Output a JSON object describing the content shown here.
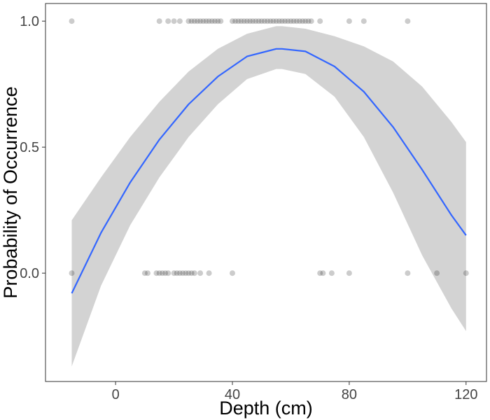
{
  "chart_data": {
    "type": "scatter",
    "title": "",
    "xlabel": "Depth (cm)",
    "ylabel": "Probability of Occurrence",
    "xlim": [
      -24,
      127
    ],
    "ylim": [
      -0.43,
      1.07
    ],
    "xticks": [
      0,
      40,
      80,
      120
    ],
    "xtick_labels": [
      "0",
      "40",
      "80",
      "120"
    ],
    "yticks": [
      0.0,
      0.5,
      1.0
    ],
    "ytick_labels": [
      "0.0",
      "0.5",
      "1.0"
    ],
    "grid": false,
    "legend": "none",
    "colors": {
      "points": "#000000",
      "fit_line": "#3366ff",
      "ribbon": "#d3d3d3",
      "frame": "#333333"
    },
    "series": [
      {
        "kind": "points",
        "points": [
          [
            -15,
            1
          ],
          [
            15,
            1
          ],
          [
            18,
            1
          ],
          [
            20,
            1
          ],
          [
            22,
            1
          ],
          [
            25,
            1
          ],
          [
            26,
            1
          ],
          [
            27,
            1
          ],
          [
            28,
            1
          ],
          [
            29,
            1
          ],
          [
            30,
            1
          ],
          [
            31,
            1
          ],
          [
            32,
            1
          ],
          [
            33,
            1
          ],
          [
            34,
            1
          ],
          [
            35,
            1
          ],
          [
            36,
            1
          ],
          [
            40,
            1
          ],
          [
            41,
            1
          ],
          [
            42,
            1
          ],
          [
            43,
            1
          ],
          [
            44,
            1
          ],
          [
            45,
            1
          ],
          [
            46,
            1
          ],
          [
            47,
            1
          ],
          [
            48,
            1
          ],
          [
            49,
            1
          ],
          [
            50,
            1
          ],
          [
            51,
            1
          ],
          [
            52,
            1
          ],
          [
            53,
            1
          ],
          [
            54,
            1
          ],
          [
            55,
            1
          ],
          [
            56,
            1
          ],
          [
            57,
            1
          ],
          [
            58,
            1
          ],
          [
            59,
            1
          ],
          [
            60,
            1
          ],
          [
            61,
            1
          ],
          [
            62,
            1
          ],
          [
            63,
            1
          ],
          [
            64,
            1
          ],
          [
            65,
            1
          ],
          [
            66,
            1
          ],
          [
            67,
            1
          ],
          [
            70,
            1
          ],
          [
            80,
            1
          ],
          [
            85,
            1
          ],
          [
            100,
            1
          ],
          [
            -15,
            0
          ],
          [
            10,
            0
          ],
          [
            11,
            0
          ],
          [
            14,
            0
          ],
          [
            15,
            0
          ],
          [
            16,
            0
          ],
          [
            17,
            0
          ],
          [
            18,
            0
          ],
          [
            20,
            0
          ],
          [
            21,
            0
          ],
          [
            22,
            0
          ],
          [
            23,
            0
          ],
          [
            24,
            0
          ],
          [
            25,
            0
          ],
          [
            26,
            0
          ],
          [
            27,
            0
          ],
          [
            29,
            0
          ],
          [
            32,
            0
          ],
          [
            40,
            0
          ],
          [
            70,
            0
          ],
          [
            71,
            0
          ],
          [
            74,
            0
          ],
          [
            80,
            0
          ],
          [
            100,
            0
          ],
          [
            110,
            0
          ],
          [
            120,
            0
          ]
        ]
      },
      {
        "kind": "fit",
        "x": [
          -15,
          -5,
          5,
          15,
          25,
          35,
          45,
          55,
          57,
          65,
          75,
          85,
          95,
          105,
          115,
          120
        ],
        "y": [
          -0.08,
          0.16,
          0.36,
          0.53,
          0.67,
          0.78,
          0.86,
          0.89,
          0.89,
          0.88,
          0.82,
          0.72,
          0.58,
          0.41,
          0.23,
          0.15
        ],
        "lower": [
          -0.37,
          -0.05,
          0.19,
          0.38,
          0.54,
          0.67,
          0.77,
          0.81,
          0.81,
          0.79,
          0.7,
          0.54,
          0.32,
          0.07,
          -0.14,
          -0.23
        ],
        "upper": [
          0.21,
          0.38,
          0.54,
          0.68,
          0.8,
          0.89,
          0.95,
          0.98,
          0.98,
          0.97,
          0.94,
          0.9,
          0.84,
          0.74,
          0.6,
          0.52
        ]
      }
    ]
  }
}
